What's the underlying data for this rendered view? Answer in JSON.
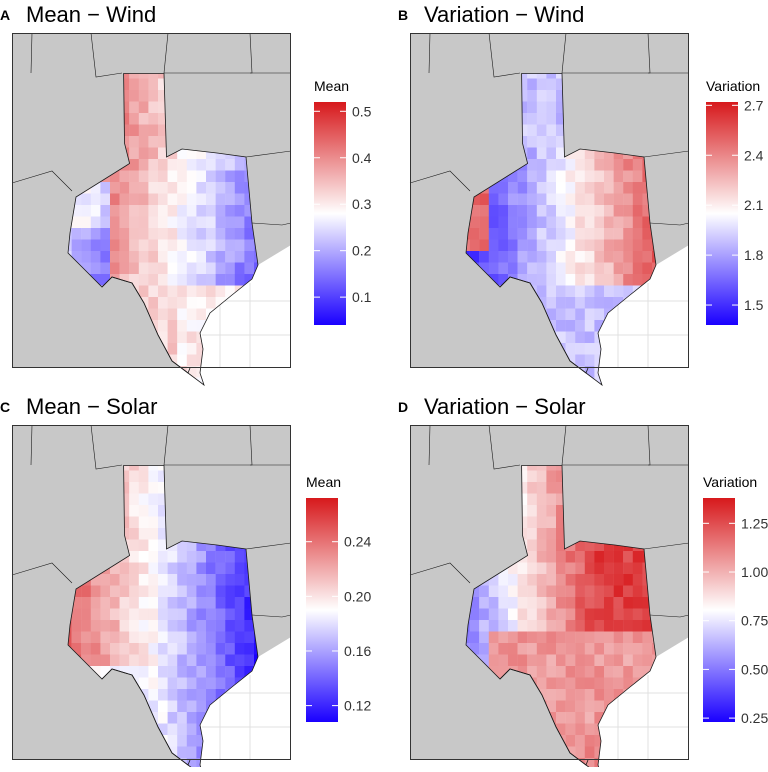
{
  "colors": {
    "low": "#1a00ff",
    "mid": "#ffffff",
    "high": "#d7191c",
    "land": "#c8c8c8",
    "water": "#ffffff",
    "border": "#1a1a1a",
    "grid": "#e0e0e0"
  },
  "chart_data": [
    {
      "type": "heatmap",
      "panel": "A",
      "title": "Mean − Wind",
      "legend": {
        "title": "Mean",
        "ticks": [
          "0.1",
          "0.2",
          "0.3",
          "0.4",
          "0.5"
        ],
        "range": [
          0.04,
          0.52
        ],
        "mid": 0.3
      },
      "pattern": "wind_mean"
    },
    {
      "type": "heatmap",
      "panel": "B",
      "title": "Variation − Wind",
      "legend": {
        "title": "Variation",
        "ticks": [
          "1.5",
          "1.8",
          "2.1",
          "2.4",
          "2.7"
        ],
        "range": [
          1.38,
          2.72
        ],
        "mid": 2.1
      },
      "pattern": "wind_var"
    },
    {
      "type": "heatmap",
      "panel": "C",
      "title": "Mean − Solar",
      "legend": {
        "title": "Mean",
        "ticks": [
          "0.12",
          "0.16",
          "0.20",
          "0.24"
        ],
        "range": [
          0.108,
          0.272
        ],
        "mid": 0.2
      },
      "pattern": "solar_mean"
    },
    {
      "type": "heatmap",
      "panel": "D",
      "title": "Variation − Solar",
      "legend": {
        "title": "Variation",
        "ticks": [
          "0.25",
          "0.50",
          "0.75",
          "1.00",
          "1.25"
        ],
        "range": [
          0.23,
          1.38
        ],
        "mid": 0.87
      },
      "pattern": "solar_var"
    }
  ]
}
